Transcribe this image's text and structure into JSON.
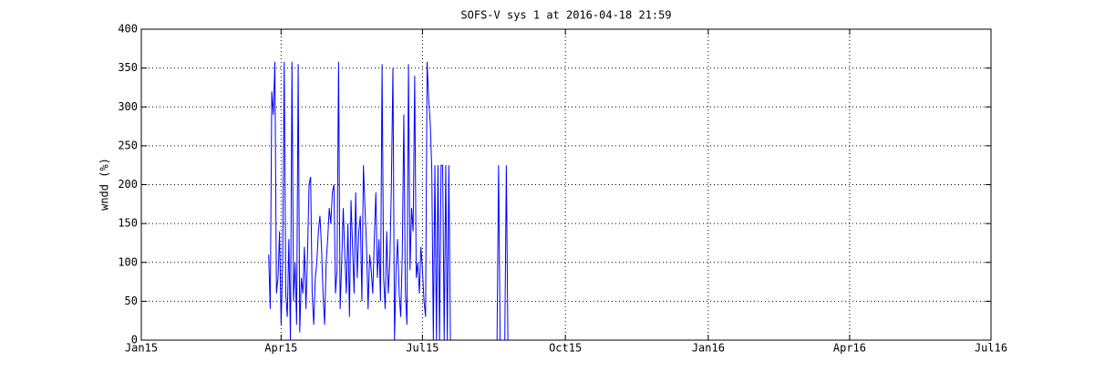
{
  "chart_data": {
    "type": "line",
    "title": "SOFS-V sys 1 at 2016-04-18 21:59",
    "ylabel": "wndd (%)",
    "grid": true,
    "xlim": [
      "2015-01-01",
      "2016-07-01"
    ],
    "xticks": [
      {
        "value": "2015-01-01",
        "label": "Jan15"
      },
      {
        "value": "2015-04-01",
        "label": "Apr15"
      },
      {
        "value": "2015-07-01",
        "label": "Jul15"
      },
      {
        "value": "2015-10-01",
        "label": "Oct15"
      },
      {
        "value": "2016-01-01",
        "label": "Jan16"
      },
      {
        "value": "2016-04-01",
        "label": "Apr16"
      },
      {
        "value": "2016-07-01",
        "label": "Jul16"
      }
    ],
    "ylim": [
      0,
      400
    ],
    "yticks": [
      0,
      50,
      100,
      150,
      200,
      250,
      300,
      350,
      400
    ],
    "series": [
      {
        "color": "#0000ff",
        "x": [
          "2015-03-24",
          "2015-03-25",
          "2015-03-26",
          "2015-03-27",
          "2015-03-28",
          "2015-03-29",
          "2015-03-30",
          "2015-03-31",
          "2015-04-01",
          "2015-04-02",
          "2015-04-03",
          "2015-04-04",
          "2015-04-05",
          "2015-04-06",
          "2015-04-07",
          "2015-04-08",
          "2015-04-09",
          "2015-04-10",
          "2015-04-11",
          "2015-04-12",
          "2015-04-13",
          "2015-04-14",
          "2015-04-15",
          "2015-04-16",
          "2015-04-17",
          "2015-04-18",
          "2015-04-19",
          "2015-04-20",
          "2015-04-21",
          "2015-04-22",
          "2015-04-23",
          "2015-04-24",
          "2015-04-25",
          "2015-04-26",
          "2015-04-27",
          "2015-04-28",
          "2015-04-29",
          "2015-04-30",
          "2015-05-01",
          "2015-05-02",
          "2015-05-03",
          "2015-05-04",
          "2015-05-05",
          "2015-05-06",
          "2015-05-07",
          "2015-05-08",
          "2015-05-09",
          "2015-05-10",
          "2015-05-11",
          "2015-05-12",
          "2015-05-13",
          "2015-05-14",
          "2015-05-15",
          "2015-05-16",
          "2015-05-17",
          "2015-05-18",
          "2015-05-19",
          "2015-05-20",
          "2015-05-21",
          "2015-05-22",
          "2015-05-23",
          "2015-05-24",
          "2015-05-25",
          "2015-05-26",
          "2015-05-27",
          "2015-05-28",
          "2015-05-29",
          "2015-05-30",
          "2015-05-31",
          "2015-06-01",
          "2015-06-02",
          "2015-06-03",
          "2015-06-04",
          "2015-06-05",
          "2015-06-06",
          "2015-06-07",
          "2015-06-08",
          "2015-06-09",
          "2015-06-10",
          "2015-06-11",
          "2015-06-12",
          "2015-06-13",
          "2015-06-14",
          "2015-06-15",
          "2015-06-16",
          "2015-06-17",
          "2015-06-18",
          "2015-06-19",
          "2015-06-20",
          "2015-06-21",
          "2015-06-22",
          "2015-06-23",
          "2015-06-24",
          "2015-06-25",
          "2015-06-26",
          "2015-06-27",
          "2015-06-28",
          "2015-06-29",
          "2015-06-30",
          "2015-07-01",
          "2015-07-02",
          "2015-07-03",
          "2015-07-04",
          "2015-07-05",
          "2015-07-06",
          "2015-07-07",
          "2015-07-08",
          "2015-07-09",
          "2015-07-10",
          "2015-07-11",
          "2015-07-12",
          "2015-07-13",
          "2015-07-14",
          "2015-07-15",
          "2015-07-16",
          "2015-07-17",
          "2015-07-18",
          "2015-07-19",
          "2015-07-20",
          "2015-08-18",
          "2015-08-19",
          "2015-08-20",
          "2015-08-23",
          "2015-08-24",
          "2015-08-25",
          "2016-07-01"
        ],
        "values": [
          110,
          40,
          320,
          290,
          358,
          60,
          80,
          140,
          20,
          100,
          358,
          60,
          30,
          130,
          0,
          358,
          50,
          100,
          20,
          355,
          10,
          80,
          60,
          120,
          40,
          110,
          200,
          210,
          60,
          20,
          80,
          100,
          140,
          160,
          120,
          60,
          20,
          100,
          130,
          170,
          150,
          190,
          200,
          60,
          90,
          358,
          40,
          100,
          170,
          110,
          60,
          150,
          30,
          180,
          120,
          60,
          190,
          80,
          140,
          160,
          50,
          225,
          170,
          120,
          40,
          110,
          90,
          60,
          130,
          190,
          80,
          130,
          50,
          355,
          80,
          40,
          140,
          60,
          100,
          200,
          350,
          0,
          90,
          130,
          60,
          30,
          110,
          290,
          60,
          20,
          355,
          90,
          170,
          140,
          340,
          80,
          100,
          60,
          120,
          90,
          50,
          30,
          358,
          310,
          280,
          220,
          0,
          225,
          0,
          225,
          0,
          225,
          225,
          0,
          225,
          0,
          225,
          0,
          0,
          0,
          225,
          0,
          0,
          225,
          0,
          0
        ]
      }
    ]
  }
}
